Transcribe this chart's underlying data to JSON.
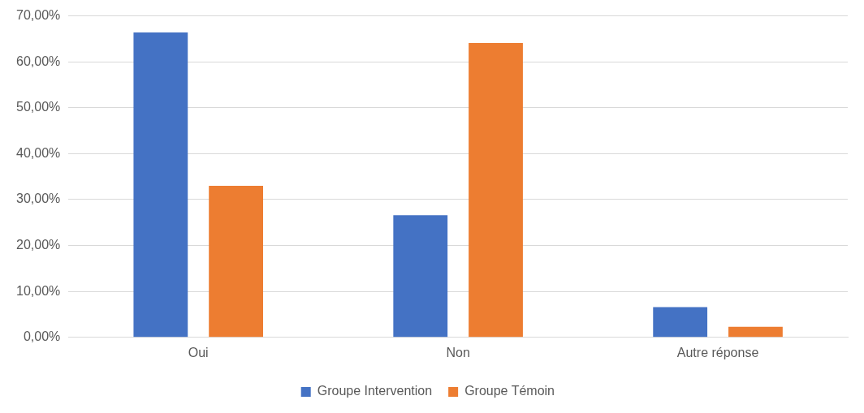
{
  "chart_data": {
    "type": "bar",
    "categories": [
      "Oui",
      "Non",
      "Autre réponse"
    ],
    "series": [
      {
        "name": "Groupe Intervention",
        "color": "#4472c4",
        "values": [
          66.4,
          26.6,
          6.6
        ]
      },
      {
        "name": "Groupe Témoin",
        "color": "#ed7d31",
        "values": [
          33.0,
          64.1,
          2.3
        ]
      }
    ],
    "ylim": [
      0,
      70
    ],
    "yticks": [
      {
        "value": 0,
        "label": "0,00%"
      },
      {
        "value": 10,
        "label": "10,00%"
      },
      {
        "value": 20,
        "label": "20,00%"
      },
      {
        "value": 30,
        "label": "30,00%"
      },
      {
        "value": 40,
        "label": "40,00%"
      },
      {
        "value": 50,
        "label": "50,00%"
      },
      {
        "value": 60,
        "label": "60,00%"
      },
      {
        "value": 70,
        "label": "70,00%"
      }
    ],
    "grid": "y",
    "legend": "bottom"
  }
}
